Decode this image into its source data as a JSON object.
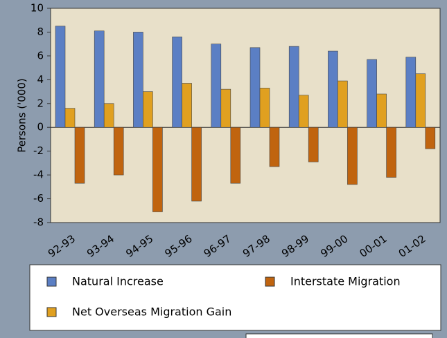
{
  "chart_data": {
    "type": "bar",
    "ylabel": "Persons ('000)",
    "categories": [
      "92-93",
      "93-94",
      "94-95",
      "95-96",
      "96-97",
      "97-98",
      "98-99",
      "99-00",
      "00-01",
      "01-02"
    ],
    "series": [
      {
        "name": "Natural Increase",
        "color": "#5b7fc4",
        "values": [
          8.5,
          8.1,
          8.0,
          7.6,
          7.0,
          6.7,
          6.8,
          6.4,
          5.7,
          5.9
        ]
      },
      {
        "name": "Net Overseas Migration Gain",
        "color": "#e0a020",
        "values": [
          1.6,
          2.0,
          3.0,
          3.7,
          3.2,
          3.3,
          2.7,
          3.9,
          2.8,
          4.5
        ]
      },
      {
        "name": "Interstate Migration",
        "color": "#c0640f",
        "values": [
          -4.7,
          -4.0,
          -7.1,
          -6.2,
          -4.7,
          -3.3,
          -2.9,
          -4.8,
          -4.2,
          -1.8
        ]
      }
    ],
    "ylim": [
      -8,
      10
    ],
    "yticks": [
      -8,
      -6,
      -4,
      -2,
      0,
      2,
      4,
      6,
      8,
      10
    ],
    "grid": false
  }
}
